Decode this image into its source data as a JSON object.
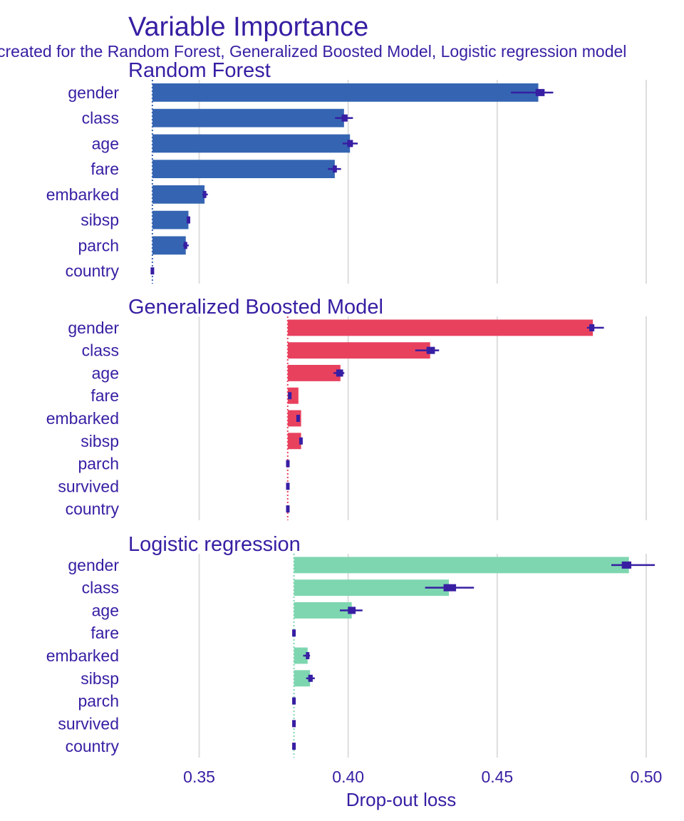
{
  "chart_data": {
    "type": "bar",
    "title": "Variable Importance",
    "subtitle": "created for the Random Forest, Generalized Boosted Model, Logistic regression model",
    "xlabel": "Drop-out loss",
    "ylabel": "",
    "xlim": [
      0.3262,
      0.5079
    ],
    "x_ticks": [
      0.35,
      0.4,
      0.45,
      0.5
    ],
    "x_tick_labels": [
      "0.35",
      "0.40",
      "0.45",
      "0.50"
    ],
    "grid": "vertical major lines",
    "legend": "none",
    "panels": [
      {
        "name": "Random Forest",
        "color": "#3565b2",
        "baseline": 0.3343,
        "categories": [
          "gender",
          "class",
          "age",
          "fare",
          "embarked",
          "sibsp",
          "parch",
          "country"
        ],
        "values": [
          0.4638,
          0.3986,
          0.4006,
          0.3955,
          0.3518,
          0.3464,
          0.3455,
          0.3343
        ],
        "error_low": [
          0.4546,
          0.3956,
          0.3981,
          0.3932,
          0.3511,
          0.3461,
          0.3446,
          0.3342
        ],
        "error_high": [
          0.4688,
          0.4016,
          0.4032,
          0.3976,
          0.3529,
          0.3469,
          0.3465,
          0.3345
        ],
        "box_low": [
          0.4629,
          0.3978,
          0.3997,
          0.3948,
          0.3514,
          0.3462,
          0.345,
          0.3342
        ],
        "box_high": [
          0.4659,
          0.3998,
          0.4016,
          0.3962,
          0.3522,
          0.3466,
          0.3458,
          0.3344
        ]
      },
      {
        "name": "Generalized Boosted Model",
        "color": "#e8415e",
        "baseline": 0.3797,
        "categories": [
          "gender",
          "class",
          "age",
          "fare",
          "embarked",
          "sibsp",
          "parch",
          "survived",
          "country"
        ],
        "values": [
          0.4821,
          0.4275,
          0.3974,
          0.3833,
          0.3842,
          0.3842,
          0.3797,
          0.3797,
          0.3797
        ],
        "error_low": [
          0.4801,
          0.4225,
          0.3951,
          0.38,
          0.3829,
          0.3839,
          0.3796,
          0.3796,
          0.3796
        ],
        "error_high": [
          0.4858,
          0.4305,
          0.3987,
          0.3808,
          0.3836,
          0.3845,
          0.3799,
          0.3799,
          0.3799
        ],
        "box_low": [
          0.4809,
          0.4263,
          0.396,
          0.3802,
          0.383,
          0.384,
          0.3797,
          0.3797,
          0.3797
        ],
        "box_high": [
          0.4826,
          0.4291,
          0.3983,
          0.3806,
          0.3834,
          0.3843,
          0.3798,
          0.3798,
          0.3798
        ]
      },
      {
        "name": "Logistic regression",
        "color": "#7ed6b0",
        "baseline": 0.3818,
        "categories": [
          "gender",
          "class",
          "age",
          "fare",
          "embarked",
          "sibsp",
          "parch",
          "survived",
          "country"
        ],
        "values": [
          0.4942,
          0.4338,
          0.4012,
          0.3818,
          0.3864,
          0.3872,
          0.3818,
          0.3818,
          0.3818
        ],
        "error_low": [
          0.4883,
          0.4258,
          0.3972,
          0.3817,
          0.3849,
          0.3859,
          0.3816,
          0.3816,
          0.3816
        ],
        "error_high": [
          0.5029,
          0.4422,
          0.4048,
          0.382,
          0.3872,
          0.3888,
          0.382,
          0.382,
          0.382
        ],
        "box_low": [
          0.4918,
          0.432,
          0.3999,
          0.3817,
          0.3859,
          0.3866,
          0.3817,
          0.3817,
          0.3817
        ],
        "box_high": [
          0.495,
          0.4362,
          0.4025,
          0.3819,
          0.3869,
          0.3881,
          0.3819,
          0.3819,
          0.3819
        ]
      }
    ]
  },
  "colors": {
    "text": "#371ea3",
    "grid": "#dddddd",
    "errorbar": "#371ea3"
  }
}
